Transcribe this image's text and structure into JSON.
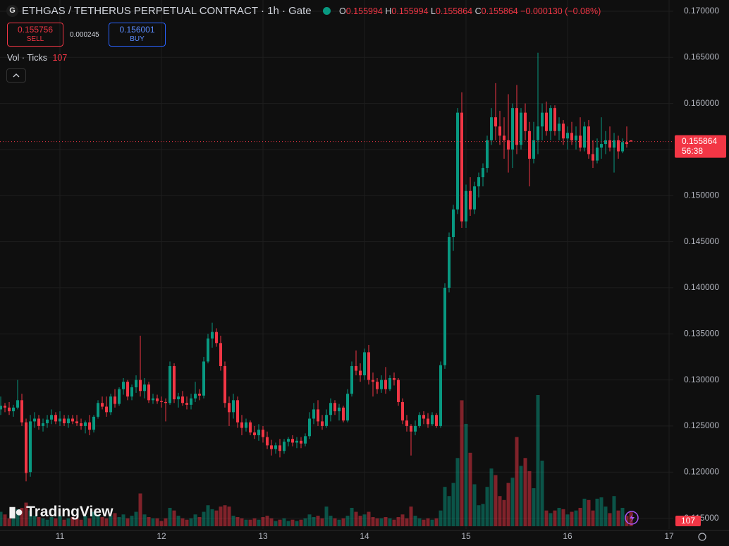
{
  "chart_data": {
    "type": "candlestick",
    "exchange_icon": "G",
    "title": "ETHGAS / TETHERUS PERPETUAL CONTRACT · 1h · Gate",
    "ohlc_legend": [
      {
        "label": "O",
        "value": 0.155994
      },
      {
        "label": "H",
        "value": 0.155994
      },
      {
        "label": "L",
        "value": 0.155864
      },
      {
        "label": "C",
        "value": 0.155864
      }
    ],
    "change": "−0.000130 (−0.08%)",
    "sell": {
      "price": 0.155756,
      "label": "SELL"
    },
    "spread": 0.000245,
    "buy": {
      "price": 0.156001,
      "label": "BUY"
    },
    "volume_legend": {
      "label": "Vol · Ticks",
      "value": 107
    },
    "watermark": "TradingView",
    "up_color": "#089981",
    "down_color": "#f23645",
    "last_price": 0.155864,
    "countdown": "56:38",
    "xlim": [
      -0.17,
      159
    ],
    "xticks": [
      {
        "value": 14,
        "label": "11"
      },
      {
        "value": 38,
        "label": "12"
      },
      {
        "value": 62,
        "label": "13"
      },
      {
        "value": 86,
        "label": "14"
      },
      {
        "value": 110,
        "label": "15"
      },
      {
        "value": 134,
        "label": "16"
      },
      {
        "value": 158,
        "label": "17"
      }
    ],
    "ylim": [
      0.11382,
      0.17122
    ],
    "yticks": [
      {
        "value": 0.115,
        "label": "0.115000"
      },
      {
        "value": 0.12,
        "label": "0.120000"
      },
      {
        "value": 0.125,
        "label": "0.125000"
      },
      {
        "value": 0.13,
        "label": "0.130000"
      },
      {
        "value": 0.135,
        "label": "0.135000"
      },
      {
        "value": 0.14,
        "label": "0.140000"
      },
      {
        "value": 0.145,
        "label": "0.145000"
      },
      {
        "value": 0.15,
        "label": "0.150000"
      },
      {
        "value": 0.155,
        "label": "0.155000"
      },
      {
        "value": 0.16,
        "label": "0.160000"
      },
      {
        "value": 0.165,
        "label": "0.165000"
      },
      {
        "value": 0.17,
        "label": "0.170000"
      }
    ],
    "grid": true,
    "ohlc": [
      [
        0.1268,
        0.1282,
        0.1262,
        0.1272
      ],
      [
        0.1272,
        0.1275,
        0.1265,
        0.127
      ],
      [
        0.127,
        0.1276,
        0.1262,
        0.1266
      ],
      [
        0.1266,
        0.1273,
        0.126,
        0.127
      ],
      [
        0.127,
        0.13,
        0.1268,
        0.1278
      ],
      [
        0.1278,
        0.1285,
        0.125,
        0.1254
      ],
      [
        0.1254,
        0.1258,
        0.119,
        0.1199
      ],
      [
        0.12,
        0.1262,
        0.1195,
        0.1255
      ],
      [
        0.1255,
        0.1265,
        0.1248,
        0.1258
      ],
      [
        0.1258,
        0.1262,
        0.1246,
        0.125
      ],
      [
        0.125,
        0.1258,
        0.1244,
        0.1253
      ],
      [
        0.1253,
        0.1262,
        0.1248,
        0.1257
      ],
      [
        0.1257,
        0.1268,
        0.1252,
        0.1262
      ],
      [
        0.1262,
        0.1265,
        0.1252,
        0.1255
      ],
      [
        0.1255,
        0.1266,
        0.125,
        0.1258
      ],
      [
        0.1258,
        0.1262,
        0.125,
        0.1253
      ],
      [
        0.1253,
        0.1262,
        0.1248,
        0.1258
      ],
      [
        0.1258,
        0.1262,
        0.1252,
        0.1255
      ],
      [
        0.1255,
        0.1262,
        0.125,
        0.1253
      ],
      [
        0.1253,
        0.1258,
        0.1246,
        0.125
      ],
      [
        0.125,
        0.1256,
        0.1242,
        0.1254
      ],
      [
        0.1254,
        0.1262,
        0.124,
        0.1246
      ],
      [
        0.1246,
        0.1262,
        0.1243,
        0.126
      ],
      [
        0.126,
        0.1278,
        0.1258,
        0.1275
      ],
      [
        0.1275,
        0.1282,
        0.1268,
        0.1271
      ],
      [
        0.1271,
        0.1282,
        0.126,
        0.1265
      ],
      [
        0.1265,
        0.1285,
        0.1262,
        0.1282
      ],
      [
        0.1282,
        0.129,
        0.127,
        0.1274
      ],
      [
        0.1274,
        0.1292,
        0.1272,
        0.129
      ],
      [
        0.129,
        0.1302,
        0.1284,
        0.1298
      ],
      [
        0.1298,
        0.13,
        0.1278,
        0.1282
      ],
      [
        0.1282,
        0.1295,
        0.1278,
        0.1292
      ],
      [
        0.1292,
        0.1305,
        0.1286,
        0.13
      ],
      [
        0.13,
        0.1348,
        0.1282,
        0.1288
      ],
      [
        0.1288,
        0.1302,
        0.128,
        0.1295
      ],
      [
        0.1295,
        0.1298,
        0.1275,
        0.1278
      ],
      [
        0.1278,
        0.1285,
        0.1274,
        0.128
      ],
      [
        0.128,
        0.1284,
        0.1274,
        0.1277
      ],
      [
        0.1277,
        0.1282,
        0.127,
        0.1276
      ],
      [
        0.1276,
        0.128,
        0.1255,
        0.1275
      ],
      [
        0.1275,
        0.132,
        0.1273,
        0.1315
      ],
      [
        0.1315,
        0.1318,
        0.1275,
        0.1279
      ],
      [
        0.1279,
        0.1286,
        0.127,
        0.1282
      ],
      [
        0.1282,
        0.1288,
        0.1272,
        0.1275
      ],
      [
        0.1275,
        0.1282,
        0.1268,
        0.1273
      ],
      [
        0.1273,
        0.1285,
        0.1268,
        0.128
      ],
      [
        0.128,
        0.1298,
        0.1276,
        0.1285
      ],
      [
        0.1285,
        0.129,
        0.1278,
        0.1283
      ],
      [
        0.1283,
        0.1325,
        0.128,
        0.132
      ],
      [
        0.132,
        0.135,
        0.1318,
        0.1345
      ],
      [
        0.1345,
        0.1362,
        0.1335,
        0.1352
      ],
      [
        0.1352,
        0.1356,
        0.1336,
        0.134
      ],
      [
        0.134,
        0.1348,
        0.131,
        0.1315
      ],
      [
        0.1315,
        0.132,
        0.127,
        0.1275
      ],
      [
        0.1275,
        0.1282,
        0.125,
        0.1265
      ],
      [
        0.1265,
        0.1285,
        0.1258,
        0.1278
      ],
      [
        0.1278,
        0.1282,
        0.1248,
        0.1254
      ],
      [
        0.1254,
        0.1262,
        0.124,
        0.1248
      ],
      [
        0.1248,
        0.1258,
        0.1244,
        0.1254
      ],
      [
        0.1254,
        0.1256,
        0.124,
        0.1243
      ],
      [
        0.1243,
        0.125,
        0.1236,
        0.124
      ],
      [
        0.124,
        0.1252,
        0.1234,
        0.1246
      ],
      [
        0.1246,
        0.125,
        0.1232,
        0.1238
      ],
      [
        0.1238,
        0.1244,
        0.1225,
        0.1229
      ],
      [
        0.1229,
        0.1235,
        0.1218,
        0.1225
      ],
      [
        0.1225,
        0.1232,
        0.122,
        0.1229
      ],
      [
        0.1229,
        0.1236,
        0.1216,
        0.1223
      ],
      [
        0.1223,
        0.1236,
        0.122,
        0.1233
      ],
      [
        0.1233,
        0.1238,
        0.1228,
        0.1236
      ],
      [
        0.1236,
        0.124,
        0.1228,
        0.1232
      ],
      [
        0.1232,
        0.1238,
        0.1226,
        0.1234
      ],
      [
        0.1234,
        0.1238,
        0.1226,
        0.1231
      ],
      [
        0.1231,
        0.1242,
        0.1228,
        0.1239
      ],
      [
        0.1239,
        0.1265,
        0.1236,
        0.1258
      ],
      [
        0.1258,
        0.1275,
        0.1252,
        0.1268
      ],
      [
        0.1268,
        0.1278,
        0.125,
        0.1255
      ],
      [
        0.1255,
        0.1262,
        0.1246,
        0.125
      ],
      [
        0.125,
        0.1268,
        0.1248,
        0.1262
      ],
      [
        0.1262,
        0.128,
        0.1255,
        0.1275
      ],
      [
        0.1275,
        0.1278,
        0.1262,
        0.1266
      ],
      [
        0.1266,
        0.1274,
        0.1256,
        0.127
      ],
      [
        0.127,
        0.1272,
        0.1254,
        0.1256
      ],
      [
        0.1256,
        0.129,
        0.1254,
        0.1285
      ],
      [
        0.1285,
        0.132,
        0.1282,
        0.1315
      ],
      [
        0.1315,
        0.1332,
        0.1305,
        0.131
      ],
      [
        0.131,
        0.1318,
        0.1298,
        0.1305
      ],
      [
        0.1305,
        0.1334,
        0.13,
        0.133
      ],
      [
        0.133,
        0.1338,
        0.1295,
        0.13
      ],
      [
        0.13,
        0.1308,
        0.1282,
        0.1298
      ],
      [
        0.1298,
        0.1302,
        0.1285,
        0.129
      ],
      [
        0.129,
        0.1305,
        0.1286,
        0.13
      ],
      [
        0.13,
        0.1314,
        0.1285,
        0.129
      ],
      [
        0.129,
        0.1305,
        0.1288,
        0.1302
      ],
      [
        0.1302,
        0.1308,
        0.1294,
        0.13
      ],
      [
        0.13,
        0.1302,
        0.1272,
        0.1276
      ],
      [
        0.1276,
        0.128,
        0.1252,
        0.1256
      ],
      [
        0.1256,
        0.1262,
        0.1244,
        0.125
      ],
      [
        0.125,
        0.1252,
        0.1218,
        0.1244
      ],
      [
        0.1244,
        0.1256,
        0.124,
        0.125
      ],
      [
        0.125,
        0.1265,
        0.1248,
        0.1262
      ],
      [
        0.1262,
        0.1266,
        0.1252,
        0.1258
      ],
      [
        0.1258,
        0.1264,
        0.1248,
        0.1252
      ],
      [
        0.1252,
        0.1265,
        0.125,
        0.1262
      ],
      [
        0.1262,
        0.1264,
        0.1248,
        0.125
      ],
      [
        0.125,
        0.132,
        0.1248,
        0.1316
      ],
      [
        0.1316,
        0.1405,
        0.1312,
        0.14
      ],
      [
        0.14,
        0.146,
        0.1395,
        0.1455
      ],
      [
        0.1455,
        0.149,
        0.144,
        0.1485
      ],
      [
        0.1485,
        0.1595,
        0.148,
        0.159
      ],
      [
        0.159,
        0.1612,
        0.1465,
        0.1472
      ],
      [
        0.1472,
        0.1512,
        0.1465,
        0.1505
      ],
      [
        0.1505,
        0.152,
        0.1478,
        0.1485
      ],
      [
        0.1485,
        0.1515,
        0.148,
        0.151
      ],
      [
        0.151,
        0.1525,
        0.1498,
        0.152
      ],
      [
        0.152,
        0.1535,
        0.151,
        0.153
      ],
      [
        0.153,
        0.1565,
        0.1525,
        0.156
      ],
      [
        0.156,
        0.1595,
        0.1555,
        0.1585
      ],
      [
        0.1585,
        0.1622,
        0.156,
        0.1575
      ],
      [
        0.1575,
        0.1592,
        0.1555,
        0.1565
      ],
      [
        0.1565,
        0.1585,
        0.154,
        0.156
      ],
      [
        0.156,
        0.161,
        0.1525,
        0.155
      ],
      [
        0.155,
        0.16,
        0.153,
        0.1595
      ],
      [
        0.1595,
        0.162,
        0.1545,
        0.1555
      ],
      [
        0.1555,
        0.1595,
        0.155,
        0.159
      ],
      [
        0.159,
        0.16,
        0.156,
        0.157
      ],
      [
        0.157,
        0.158,
        0.151,
        0.154
      ],
      [
        0.154,
        0.158,
        0.1535,
        0.156
      ],
      [
        0.156,
        0.1655,
        0.1545,
        0.1575
      ],
      [
        0.1575,
        0.16,
        0.156,
        0.159
      ],
      [
        0.159,
        0.1602,
        0.1565,
        0.157
      ],
      [
        0.157,
        0.1598,
        0.156,
        0.1595
      ],
      [
        0.1595,
        0.1598,
        0.1565,
        0.157
      ],
      [
        0.157,
        0.1585,
        0.156,
        0.1578
      ],
      [
        0.1578,
        0.1582,
        0.1555,
        0.1562
      ],
      [
        0.1562,
        0.1575,
        0.155,
        0.1568
      ],
      [
        0.1568,
        0.158,
        0.1555,
        0.156
      ],
      [
        0.156,
        0.1575,
        0.155,
        0.1565
      ],
      [
        0.1565,
        0.1585,
        0.1548,
        0.1552
      ],
      [
        0.1552,
        0.158,
        0.1548,
        0.1575
      ],
      [
        0.1575,
        0.1582,
        0.154,
        0.1545
      ],
      [
        0.1545,
        0.156,
        0.153,
        0.1538
      ],
      [
        0.1538,
        0.1562,
        0.1535,
        0.1552
      ],
      [
        0.1552,
        0.1585,
        0.154,
        0.1556
      ],
      [
        0.1556,
        0.157,
        0.1545,
        0.156
      ],
      [
        0.156,
        0.1575,
        0.1548,
        0.1552
      ],
      [
        0.1552,
        0.1568,
        0.1525,
        0.156
      ],
      [
        0.156,
        0.1565,
        0.154,
        0.1548
      ],
      [
        0.1548,
        0.1562,
        0.1546,
        0.1558
      ],
      [
        0.1558,
        0.1575,
        0.1552,
        0.1556
      ],
      [
        0.155994,
        0.155994,
        0.155864,
        0.155864
      ]
    ],
    "volume": [
      110,
      90,
      60,
      70,
      130,
      140,
      180,
      120,
      80,
      70,
      60,
      50,
      70,
      60,
      80,
      50,
      60,
      70,
      60,
      50,
      80,
      60,
      110,
      90,
      70,
      60,
      80,
      100,
      70,
      90,
      60,
      80,
      110,
      250,
      90,
      70,
      60,
      60,
      40,
      60,
      140,
      120,
      80,
      60,
      50,
      60,
      90,
      70,
      110,
      160,
      130,
      120,
      150,
      160,
      150,
      80,
      70,
      60,
      50,
      50,
      60,
      50,
      70,
      80,
      60,
      40,
      50,
      60,
      40,
      50,
      40,
      50,
      60,
      90,
      70,
      80,
      60,
      150,
      80,
      60,
      50,
      60,
      80,
      140,
      110,
      80,
      90,
      110,
      70,
      60,
      60,
      70,
      60,
      50,
      70,
      90,
      60,
      150,
      80,
      60,
      50,
      60,
      50,
      60,
      120,
      300,
      230,
      330,
      520,
      960,
      780,
      560,
      320,
      160,
      170,
      300,
      440,
      390,
      230,
      200,
      330,
      370,
      680,
      460,
      520,
      420,
      290,
      1000,
      500,
      120,
      100,
      120,
      140,
      130,
      90,
      110,
      120,
      140,
      210,
      200,
      120,
      210,
      220,
      150,
      100,
      230,
      120,
      140,
      80,
      107
    ]
  }
}
